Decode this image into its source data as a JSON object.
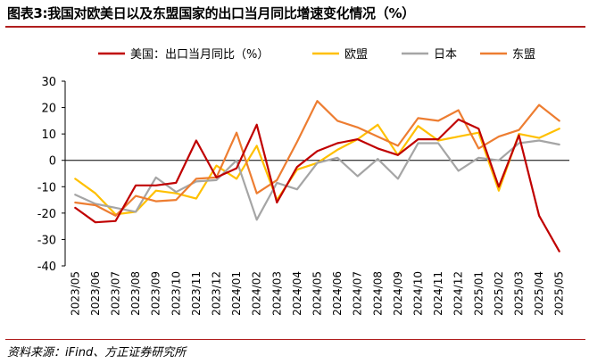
{
  "figure": {
    "title": "图表3:我国对欧美日以及东盟国家的出口当月同比增速变化情况（%）",
    "source": "资料来源：iFind、方正证券研究所"
  },
  "chart_data": {
    "type": "line",
    "title": "图表3:我国对欧美日以及东盟国家的出口当月同比增速变化情况（%）",
    "xlabel": "",
    "ylabel": "",
    "ylim": [
      -40,
      30
    ],
    "yticks": [
      -40,
      -30,
      -20,
      -10,
      0,
      10,
      20,
      30
    ],
    "grid": false,
    "legend_position": "top",
    "categories": [
      "2023/05",
      "2023/06",
      "2023/07",
      "2023/08",
      "2023/09",
      "2023/10",
      "2023/11",
      "2023/12",
      "2024/01",
      "2024/02",
      "2024/03",
      "2024/04",
      "2024/05",
      "2024/06",
      "2024/07",
      "2024/08",
      "2024/09",
      "2024/10",
      "2024/11",
      "2024/12",
      "2025/01",
      "2025/02",
      "2025/03",
      "2025/04",
      "2025/05"
    ],
    "series": [
      {
        "name": "美国：出口当月同比（%）",
        "color": "#c00000",
        "values": [
          -18,
          -23.5,
          -23,
          -9.5,
          -9.5,
          -8.5,
          7.5,
          -6.5,
          -3,
          13.5,
          -16,
          -2.5,
          3.5,
          6.5,
          8,
          4.5,
          2,
          8,
          8,
          15.5,
          12,
          -10,
          9.5,
          -21,
          -34.5
        ]
      },
      {
        "name": "欧盟",
        "color": "#ffc000",
        "values": [
          -7,
          -12.5,
          -20.5,
          -19.5,
          -11.5,
          -12.5,
          -14.5,
          -2,
          -7,
          5.5,
          -15,
          -3.5,
          -1,
          4,
          8,
          13.5,
          2,
          13,
          7.5,
          9,
          10.5,
          -11.5,
          10,
          8.5,
          12
        ]
      },
      {
        "name": "日本",
        "color": "#a5a5a5",
        "values": [
          -13,
          -16.5,
          -18,
          -19.5,
          -6.5,
          -12,
          -8,
          -7.5,
          0,
          -22.5,
          -8.5,
          -11,
          -1,
          1,
          -6,
          0.5,
          -7,
          6.5,
          6.5,
          -4,
          1,
          0,
          6.5,
          7.5,
          6
        ]
      },
      {
        "name": "东盟",
        "color": "#ed7d31",
        "values": [
          -16,
          -17,
          -21,
          -13.5,
          -15.5,
          -15,
          -7,
          -6.5,
          10.5,
          -12.5,
          -7.5,
          7,
          22.5,
          15,
          12.5,
          9,
          5.5,
          16,
          15,
          19,
          4.5,
          9,
          11.5,
          21,
          15
        ]
      }
    ]
  }
}
